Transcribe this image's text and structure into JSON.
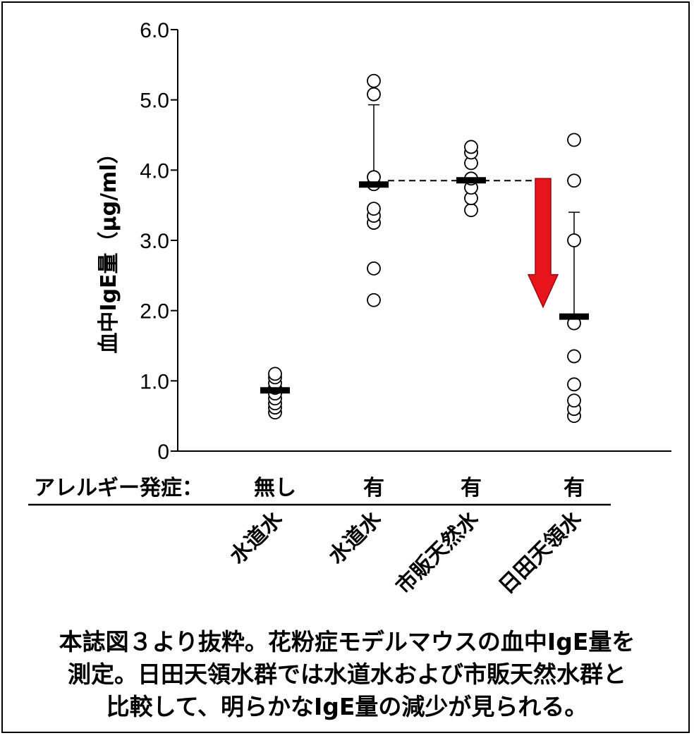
{
  "chart_data": {
    "type": "scatter",
    "ylabel": "血中IgE量（μg/ml）",
    "ylim": [
      0,
      6
    ],
    "yticks": [
      "0",
      "1.0",
      "2.0",
      "3.0",
      "4.0",
      "5.0",
      "6.0"
    ],
    "row_label": "アレルギー発症：",
    "groups": [
      {
        "allergy": "無し",
        "name": "水道水",
        "mean": 0.87,
        "points": [
          0.55,
          0.62,
          0.68,
          0.75,
          0.82,
          0.9,
          0.97,
          1.05,
          1.1
        ]
      },
      {
        "allergy": "有",
        "name": "水道水",
        "mean": 3.8,
        "sd_upper": 4.93,
        "points": [
          2.15,
          2.6,
          3.25,
          3.35,
          3.45,
          3.8,
          3.9,
          5.08,
          5.27
        ]
      },
      {
        "allergy": "有",
        "name": "市販天然水",
        "mean": 3.86,
        "points": [
          3.43,
          3.6,
          3.75,
          3.88,
          4.1,
          4.25,
          4.33
        ]
      },
      {
        "allergy": "有",
        "name": "日田天領水",
        "mean": 1.92,
        "sd_upper": 3.4,
        "points": [
          0.5,
          0.6,
          0.72,
          0.95,
          1.35,
          1.82,
          3.0,
          3.85,
          4.43
        ]
      }
    ],
    "reference_line_value": 3.85,
    "colors": {
      "arrow": "#e8141c",
      "arrow_outline": "#9a0b10"
    }
  },
  "caption": [
    "本誌図３より抜粋。花粉症モデルマウスの血中IgE量を",
    "測定。日田天領水群では水道水および市販天然水群と",
    "比較して、明らかなIgE量の減少が見られる。"
  ]
}
